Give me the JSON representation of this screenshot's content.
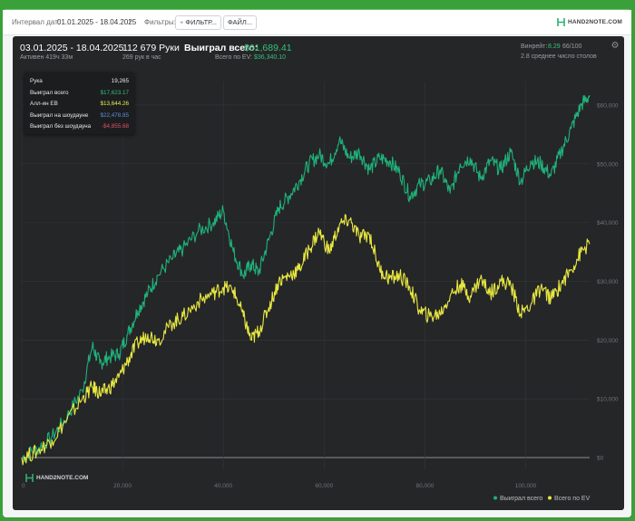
{
  "toolbar": {
    "date_interval_label": "Интервал дат:",
    "date_interval_value": "01.01.2025 - 18.04.2025",
    "filters_label": "Фильтры:",
    "filter_button": "ФИЛЬТР...",
    "files_button": "ФАЙЛ...",
    "logo_text": "HAND2NOTE.COM"
  },
  "header": {
    "date_range": "03.01.2025 - 18.04.2025",
    "active_time": "Активен 419ч 33м",
    "hands": "112 679 Руки",
    "hands_per_hour": "269 рук в час",
    "won_total_label": "Выиграл всего:",
    "won_total_value": "$61,689.41",
    "ev_total_label": "Всего по EV:",
    "ev_total_value": "$36,340.10",
    "winrate_label": "Винрейт:",
    "winrate_value": "8.29",
    "winrate_suffix": "66/100",
    "avg_tables": "2.8 среднее число столов"
  },
  "tooltip": {
    "rows": [
      {
        "label": "Рука",
        "value": "19,265",
        "color": "#e8e8e8"
      },
      {
        "label": "Выиграл всего",
        "value": "$17,623.17",
        "color": "#33c07c"
      },
      {
        "label": "Алл-ин EB",
        "value": "$13,644.26",
        "color": "#ecec52"
      },
      {
        "label": "Выиграл на шоудауне",
        "value": "$22,478.85",
        "color": "#5b8ee0"
      },
      {
        "label": "Выиграл без шоудауна",
        "value": "-$4,855.68",
        "color": "#e0506a"
      }
    ]
  },
  "chart_data": {
    "type": "line",
    "x_range": [
      0,
      112679
    ],
    "y_range": [
      -2000,
      64000
    ],
    "x_ticks": [
      "0",
      "20,000",
      "40,000",
      "60,000",
      "80,000",
      "100,000"
    ],
    "x_tick_values": [
      0,
      20000,
      40000,
      60000,
      80000,
      100000
    ],
    "y_ticks": [
      "$0",
      "$10,000",
      "$20,000",
      "$30,000",
      "$40,000",
      "$50,000",
      "$60,000"
    ],
    "y_tick_values": [
      0,
      10000,
      20000,
      30000,
      40000,
      50000,
      60000
    ],
    "grid": true,
    "legend_position": "bottom-right",
    "series": [
      {
        "name": "Выиграл всего",
        "color": "#1fb27a",
        "x": [
          0,
          3000,
          6000,
          9000,
          12000,
          14000,
          15500,
          17000,
          19265,
          21000,
          23000,
          25000,
          27000,
          30000,
          32000,
          35000,
          38000,
          40000,
          42000,
          44000,
          45500,
          47000,
          49000,
          51000,
          53000,
          55000,
          57000,
          59000,
          61000,
          63000,
          65000,
          67000,
          69000,
          71000,
          73000,
          75000,
          77000,
          79000,
          81000,
          83000,
          85000,
          87000,
          89000,
          91000,
          93000,
          95000,
          97000,
          99000,
          101000,
          103000,
          105000,
          107000,
          109000,
          111000,
          112679
        ],
        "y": [
          0,
          1500,
          3500,
          7000,
          11500,
          19000,
          16000,
          17000,
          17623,
          21000,
          25000,
          28000,
          31000,
          34000,
          35500,
          38500,
          40000,
          42000,
          35000,
          31000,
          33000,
          31500,
          37000,
          42500,
          44500,
          47000,
          50000,
          51500,
          50000,
          54000,
          51000,
          52000,
          49000,
          51000,
          50500,
          48500,
          44500,
          46500,
          47000,
          49000,
          45000,
          50000,
          51000,
          47500,
          50500,
          49000,
          52000,
          47000,
          50500,
          50000,
          48000,
          52000,
          56000,
          60000,
          61689
        ]
      },
      {
        "name": "Всего по EV",
        "color": "#e8e841",
        "x": [
          0,
          3000,
          6000,
          9000,
          12000,
          14000,
          15500,
          17000,
          19265,
          21000,
          23000,
          25000,
          27000,
          30000,
          32000,
          35000,
          38000,
          40000,
          42000,
          44000,
          45500,
          47000,
          49000,
          51000,
          53000,
          55000,
          57000,
          59000,
          61000,
          63000,
          65000,
          67000,
          69000,
          71000,
          73000,
          75000,
          77000,
          79000,
          81000,
          83000,
          85000,
          87000,
          89000,
          91000,
          93000,
          95000,
          97000,
          99000,
          101000,
          103000,
          105000,
          107000,
          109000,
          111000,
          112679
        ],
        "y": [
          0,
          1000,
          3000,
          6500,
          10000,
          12000,
          11000,
          11500,
          13644,
          16500,
          19500,
          21000,
          20000,
          23000,
          24000,
          26500,
          28000,
          29000,
          28500,
          24000,
          20000,
          21500,
          25500,
          30000,
          31000,
          32000,
          35500,
          38500,
          35000,
          39500,
          40500,
          37500,
          38000,
          32000,
          30500,
          31000,
          29000,
          25000,
          24000,
          24500,
          27500,
          29500,
          27500,
          30500,
          28000,
          30000,
          29500,
          24500,
          26000,
          29000,
          27000,
          29500,
          32000,
          35000,
          36340
        ]
      }
    ]
  }
}
